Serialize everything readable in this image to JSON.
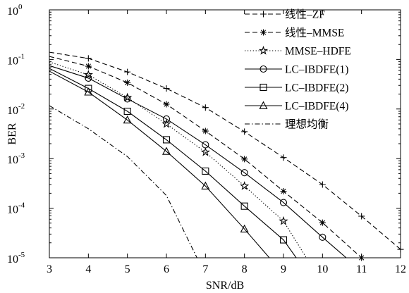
{
  "chart_data": {
    "type": "line",
    "xlabel": "SNR/dB",
    "ylabel": "BER",
    "xlim": [
      3,
      12
    ],
    "ylim": [
      1e-05,
      1
    ],
    "yscale": "log",
    "grid": false,
    "legend_position": "top-right",
    "xticks": [
      3,
      4,
      5,
      6,
      7,
      8,
      9,
      10,
      11,
      12
    ],
    "xticklabels": [
      "3",
      "4",
      "5",
      "6",
      "7",
      "8",
      "9",
      "10",
      "11",
      "12"
    ],
    "yticks": [
      1,
      0.1,
      0.01,
      0.001,
      0.0001,
      1e-05
    ],
    "yticklabels": [
      {
        "base": "10",
        "exp": "0"
      },
      {
        "base": "10",
        "exp": "-1"
      },
      {
        "base": "10",
        "exp": "-2"
      },
      {
        "base": "10",
        "exp": "-3"
      },
      {
        "base": "10",
        "exp": "-4"
      },
      {
        "base": "10",
        "exp": "-5"
      }
    ],
    "series": [
      {
        "name": "线性–ZF",
        "line": "dashed",
        "marker": "plus",
        "color": "#000000",
        "x": [
          3,
          4,
          5,
          6,
          7,
          8,
          9,
          10,
          11,
          12
        ],
        "y": [
          0.14,
          0.105,
          0.056,
          0.026,
          0.0107,
          0.0035,
          0.00105,
          0.0003,
          6.9e-05,
          1.48e-05
        ]
      },
      {
        "name": "线性–MMSE",
        "line": "dashed",
        "marker": "asterisk",
        "color": "#000000",
        "x": [
          3,
          4,
          5,
          6,
          7,
          8,
          9,
          10,
          11
        ],
        "y": [
          0.115,
          0.073,
          0.034,
          0.0125,
          0.0036,
          0.00098,
          0.00022,
          5.1e-05,
          1e-05
        ]
      },
      {
        "name": "MMSE–HDFE",
        "line": "dotted",
        "marker": "pentagram",
        "color": "#000000",
        "x": [
          3,
          4,
          5,
          6,
          7,
          8,
          9,
          10
        ],
        "y": [
          0.089,
          0.049,
          0.017,
          0.005,
          0.00135,
          0.00028,
          5.5e-05,
          3e-06
        ]
      },
      {
        "name": "LC–IBDFE(1)",
        "line": "solid",
        "marker": "circle",
        "color": "#000000",
        "x": [
          3,
          4,
          5,
          6,
          7,
          8,
          9,
          10,
          11
        ],
        "y": [
          0.075,
          0.042,
          0.016,
          0.0063,
          0.0019,
          0.00052,
          0.00013,
          2.6e-05,
          5.4e-06
        ]
      },
      {
        "name": "LC–IBDFE(2)",
        "line": "solid",
        "marker": "square",
        "color": "#000000",
        "x": [
          3,
          4,
          5,
          6,
          7,
          8,
          9,
          10
        ],
        "y": [
          0.066,
          0.026,
          0.009,
          0.0024,
          0.00056,
          0.00011,
          2.3e-05,
          1.8e-06
        ]
      },
      {
        "name": "LC–IBDFE(4)",
        "line": "solid",
        "marker": "triangle",
        "color": "#000000",
        "x": [
          3,
          4,
          5,
          6,
          7,
          8,
          9
        ],
        "y": [
          0.058,
          0.022,
          0.006,
          0.0014,
          0.00028,
          3.8e-05,
          4.7e-06
        ]
      },
      {
        "name": "理想均衡",
        "line": "dashdot",
        "marker": "none",
        "color": "#000000",
        "x": [
          3,
          4,
          5,
          6,
          7
        ],
        "y": [
          0.0117,
          0.004,
          0.0011,
          0.00018,
          4.5e-06
        ]
      }
    ]
  }
}
